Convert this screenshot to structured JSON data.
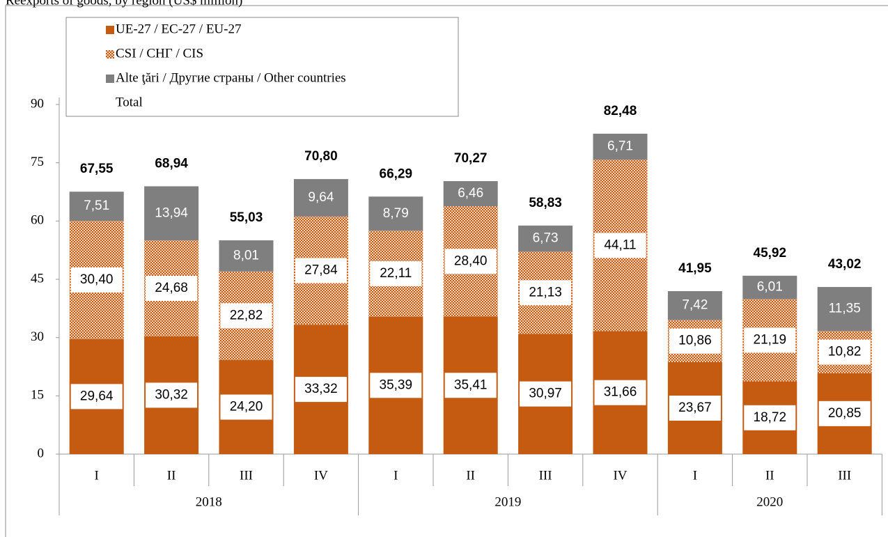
{
  "chart_data": {
    "type": "stacked-bar",
    "title": "Reexports of goods, by region (US$ million)",
    "groups": [
      {
        "label": "2018",
        "categories": [
          "I",
          "II",
          "III",
          "IV"
        ]
      },
      {
        "label": "2019",
        "categories": [
          "I",
          "II",
          "III",
          "IV"
        ]
      },
      {
        "label": "2020",
        "categories": [
          "I",
          "II",
          "III"
        ]
      }
    ],
    "series": [
      {
        "name": "UE-27 / ЕС-27 / EU-27",
        "color": "#c55a11",
        "pattern": "solid",
        "values": [
          29.64,
          30.32,
          24.2,
          33.32,
          35.39,
          35.41,
          30.97,
          31.66,
          23.67,
          18.72,
          20.85
        ],
        "value_labels": [
          "29,64",
          "30,32",
          "24,20",
          "33,32",
          "35,39",
          "35,41",
          "30,97",
          "31,66",
          "23,67",
          "18,72",
          "20,85"
        ]
      },
      {
        "name": "CSI / СНГ / CIS",
        "color": "#c55a11",
        "pattern": "dots",
        "values": [
          30.4,
          24.68,
          22.82,
          27.84,
          22.11,
          28.4,
          21.13,
          44.11,
          10.86,
          21.19,
          10.82
        ],
        "value_labels": [
          "30,40",
          "24,68",
          "22,82",
          "27,84",
          "22,11",
          "28,40",
          "21,13",
          "44,11",
          "10,86",
          "21,19",
          "10,82"
        ]
      },
      {
        "name": "Alte ţări / Другие страны / Other countries",
        "color": "#7f7f7f",
        "pattern": "solid",
        "values": [
          7.51,
          13.94,
          8.01,
          9.64,
          8.79,
          6.46,
          6.73,
          6.71,
          7.42,
          6.01,
          11.35
        ],
        "value_labels": [
          "7,51",
          "13,94",
          "8,01",
          "9,64",
          "8,79",
          "6,46",
          "6,73",
          "6,71",
          "7,42",
          "6,01",
          "11,35"
        ]
      },
      {
        "name": "Total",
        "role": "total",
        "values": [
          67.55,
          68.94,
          55.03,
          70.8,
          66.29,
          70.27,
          58.83,
          82.48,
          41.95,
          45.92,
          43.02
        ],
        "value_labels": [
          "67,55",
          "68,94",
          "55,03",
          "70,80",
          "66,29",
          "70,27",
          "58,83",
          "82,48",
          "41,95",
          "45,92",
          "43,02"
        ]
      }
    ],
    "ylim": [
      0,
      90
    ],
    "yticks": [
      0,
      15,
      30,
      45,
      60,
      75,
      90
    ],
    "grid": false,
    "legend": "top-left"
  }
}
